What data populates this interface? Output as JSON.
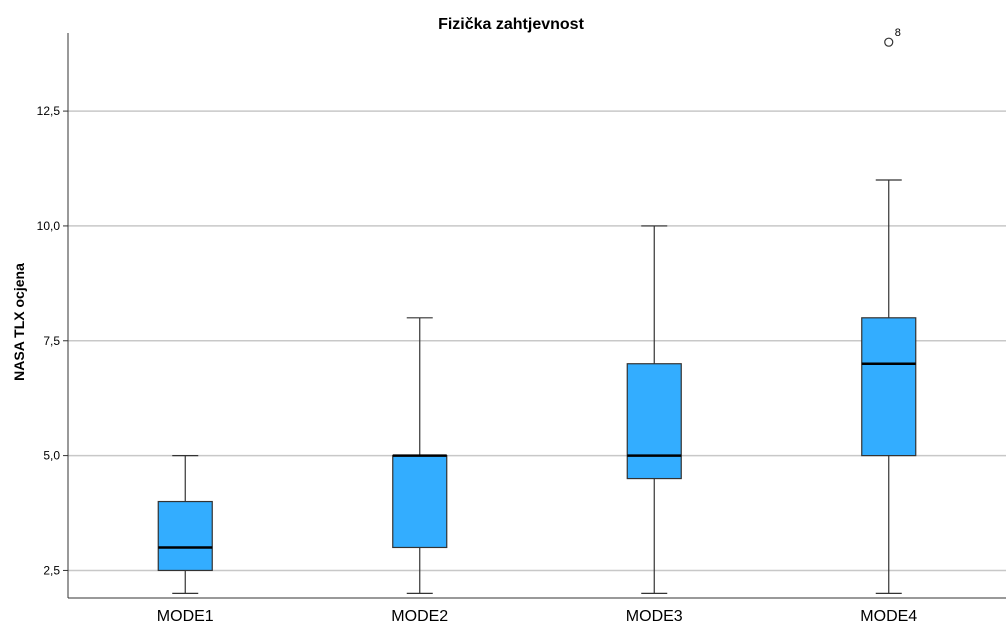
{
  "chart_data": {
    "type": "boxplot",
    "title": "Fizička zahtjevnost",
    "xlabel": "",
    "ylabel": "NASA TLX ocjena",
    "ylim": [
      1.9,
      14.2
    ],
    "yticks": [
      2.5,
      5.0,
      7.5,
      10.0,
      12.5
    ],
    "ytick_labels": [
      "2,5",
      "5,0",
      "7,5",
      "10,0",
      "12,5"
    ],
    "grid": true,
    "box_color": "#33adff",
    "categories": [
      "MODE1",
      "MODE2",
      "MODE3",
      "MODE4"
    ],
    "boxes": [
      {
        "category": "MODE1",
        "whisker_low": 2,
        "q1": 2.5,
        "median": 3,
        "q3": 4,
        "whisker_high": 5
      },
      {
        "category": "MODE2",
        "whisker_low": 2,
        "q1": 3,
        "median": 5,
        "q3": 5,
        "whisker_high": 8
      },
      {
        "category": "MODE3",
        "whisker_low": 2,
        "q1": 4.5,
        "median": 5,
        "q3": 7,
        "whisker_high": 10
      },
      {
        "category": "MODE4",
        "whisker_low": 2,
        "q1": 5,
        "median": 7,
        "q3": 8,
        "whisker_high": 11
      }
    ],
    "outliers": [
      {
        "category": "MODE4",
        "value": 14,
        "label": "8"
      }
    ]
  }
}
